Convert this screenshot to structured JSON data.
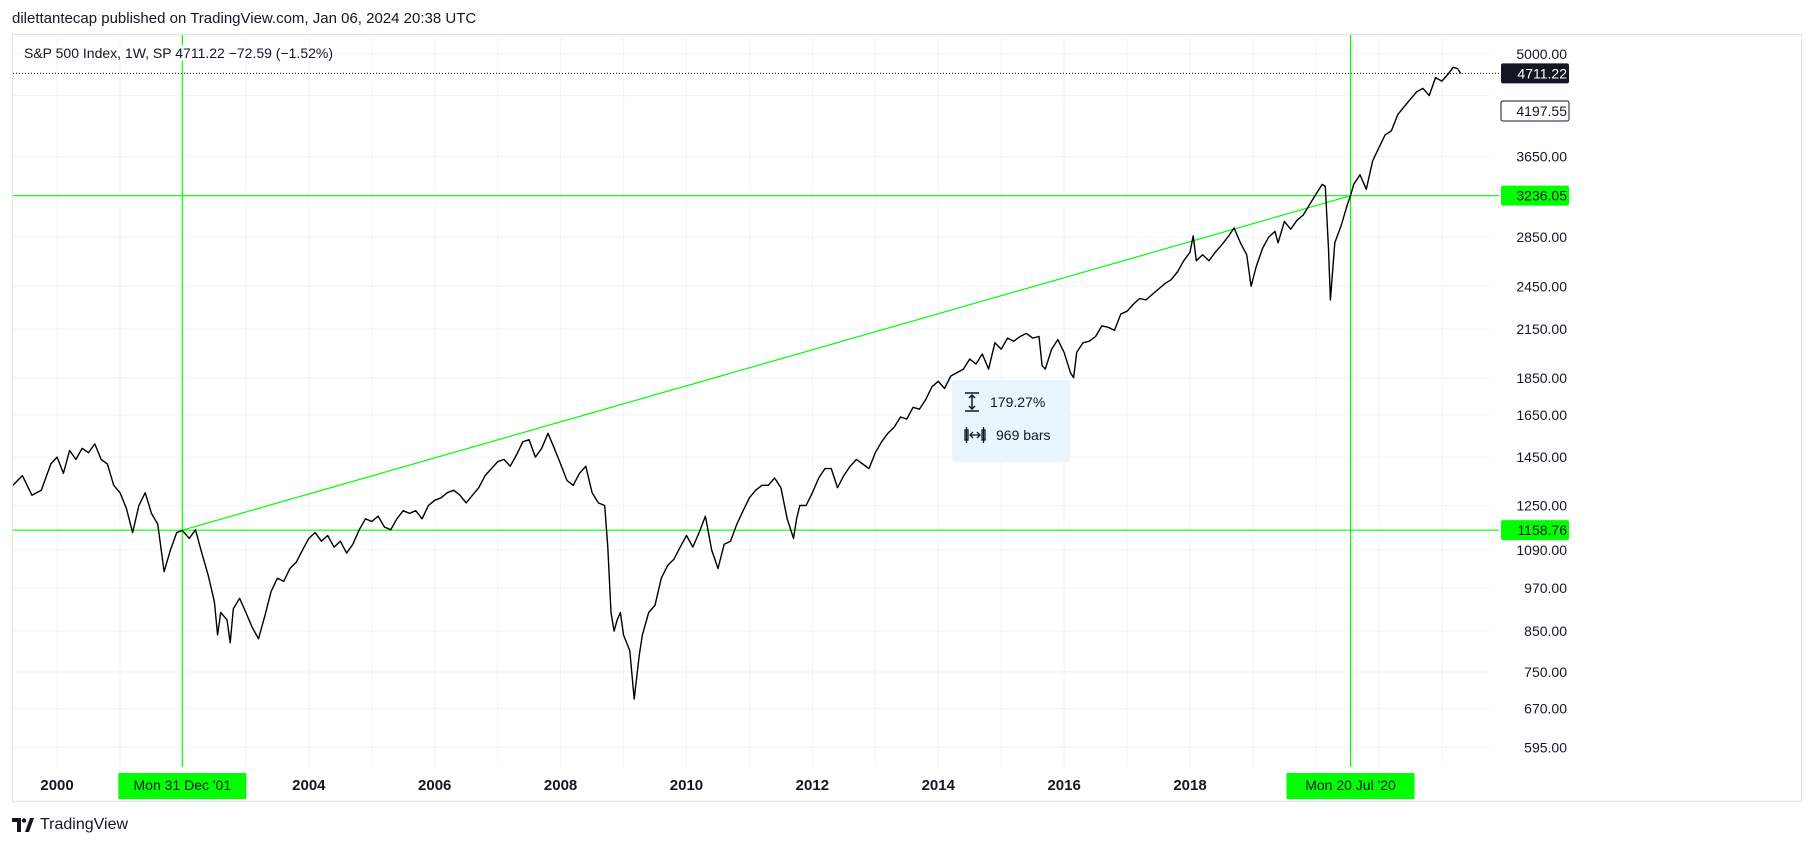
{
  "header": {
    "published": "dilettantecap published on TradingView.com, Jan 06, 2024 20:38 UTC"
  },
  "symbol_info": "S&P 500 Index, 1W, SP  4711.22  −72.59 (−1.52%)",
  "footer": {
    "brand": "TradingView",
    "logo_icon": "tradingview-logo-icon"
  },
  "colors": {
    "price_line": "#000000",
    "drawing": "#00ff00",
    "grid": "#f0f3fa",
    "badge_dark": "#131722"
  },
  "measure": {
    "percent": "179.27%",
    "bars": "969 bars",
    "percent_icon": "vertical-range-icon",
    "bars_icon": "horizontal-range-icon"
  },
  "chart_data": {
    "type": "line",
    "title": "S&P 500 Index, 1W, SP",
    "scale": "log",
    "ylim": [
      560,
      5300
    ],
    "xlim": [
      1999.3,
      2022.75
    ],
    "y_ticks": [
      5000,
      4197.55,
      3650,
      2850,
      2450,
      2150,
      1850,
      1650,
      1450,
      1250,
      1090,
      970,
      850,
      750,
      670,
      595
    ],
    "y_tick_labels": [
      "5000.00",
      "4197.55",
      "3650.00",
      "2850.00",
      "2450.00",
      "2150.00",
      "1850.00",
      "1650.00",
      "1450.00",
      "1250.00",
      "1090.00",
      "970.00",
      "850.00",
      "750.00",
      "670.00",
      "595.00"
    ],
    "x_ticks": [
      2000,
      2004,
      2006,
      2008,
      2010,
      2012,
      2014,
      2016,
      2018
    ],
    "x_tick_labels": [
      "2000",
      "2004",
      "2006",
      "2008",
      "2010",
      "2012",
      "2014",
      "2016",
      "2018"
    ],
    "current_price": {
      "value": 4711.22,
      "label": "4711.22"
    },
    "last_visible_label": {
      "value": 4197.55,
      "label": "4197.55"
    },
    "horizontal_levels": [
      {
        "value": 3236.05,
        "label": "3236.05"
      },
      {
        "value": 1158.76,
        "label": "1158.76"
      }
    ],
    "vertical_markers": [
      {
        "x": 2001.99,
        "label": "Mon 31 Dec '01"
      },
      {
        "x": 2020.55,
        "label": "Mon 20 Jul '20"
      }
    ],
    "trend_line": {
      "x": [
        2001.99,
        2020.55
      ],
      "y": [
        1158.76,
        3236.05
      ]
    },
    "series": [
      {
        "values": [
          [
            1999.3,
            1330
          ],
          [
            1999.45,
            1370
          ],
          [
            1999.6,
            1290
          ],
          [
            1999.75,
            1310
          ],
          [
            1999.9,
            1420
          ],
          [
            2000.0,
            1450
          ],
          [
            2000.1,
            1380
          ],
          [
            2000.2,
            1480
          ],
          [
            2000.3,
            1440
          ],
          [
            2000.4,
            1490
          ],
          [
            2000.5,
            1470
          ],
          [
            2000.6,
            1510
          ],
          [
            2000.7,
            1440
          ],
          [
            2000.8,
            1420
          ],
          [
            2000.9,
            1330
          ],
          [
            2001.0,
            1300
          ],
          [
            2001.1,
            1240
          ],
          [
            2001.2,
            1150
          ],
          [
            2001.3,
            1250
          ],
          [
            2001.4,
            1300
          ],
          [
            2001.5,
            1220
          ],
          [
            2001.6,
            1180
          ],
          [
            2001.7,
            1020
          ],
          [
            2001.8,
            1090
          ],
          [
            2001.9,
            1150
          ],
          [
            2001.99,
            1158
          ],
          [
            2002.1,
            1130
          ],
          [
            2002.2,
            1160
          ],
          [
            2002.3,
            1080
          ],
          [
            2002.4,
            1010
          ],
          [
            2002.5,
            930
          ],
          [
            2002.55,
            840
          ],
          [
            2002.6,
            900
          ],
          [
            2002.7,
            880
          ],
          [
            2002.75,
            820
          ],
          [
            2002.8,
            910
          ],
          [
            2002.9,
            940
          ],
          [
            2003.0,
            900
          ],
          [
            2003.1,
            860
          ],
          [
            2003.2,
            830
          ],
          [
            2003.3,
            890
          ],
          [
            2003.4,
            960
          ],
          [
            2003.5,
            1000
          ],
          [
            2003.6,
            990
          ],
          [
            2003.7,
            1030
          ],
          [
            2003.8,
            1050
          ],
          [
            2003.9,
            1090
          ],
          [
            2004.0,
            1130
          ],
          [
            2004.1,
            1150
          ],
          [
            2004.2,
            1120
          ],
          [
            2004.3,
            1140
          ],
          [
            2004.4,
            1100
          ],
          [
            2004.5,
            1120
          ],
          [
            2004.6,
            1080
          ],
          [
            2004.7,
            1110
          ],
          [
            2004.8,
            1160
          ],
          [
            2004.9,
            1200
          ],
          [
            2005.0,
            1190
          ],
          [
            2005.1,
            1210
          ],
          [
            2005.2,
            1170
          ],
          [
            2005.3,
            1160
          ],
          [
            2005.4,
            1200
          ],
          [
            2005.5,
            1230
          ],
          [
            2005.6,
            1220
          ],
          [
            2005.7,
            1230
          ],
          [
            2005.8,
            1200
          ],
          [
            2005.9,
            1250
          ],
          [
            2006.0,
            1270
          ],
          [
            2006.1,
            1280
          ],
          [
            2006.2,
            1300
          ],
          [
            2006.3,
            1310
          ],
          [
            2006.4,
            1290
          ],
          [
            2006.5,
            1260
          ],
          [
            2006.6,
            1290
          ],
          [
            2006.7,
            1320
          ],
          [
            2006.8,
            1370
          ],
          [
            2006.9,
            1400
          ],
          [
            2007.0,
            1430
          ],
          [
            2007.1,
            1440
          ],
          [
            2007.2,
            1410
          ],
          [
            2007.3,
            1460
          ],
          [
            2007.4,
            1520
          ],
          [
            2007.5,
            1530
          ],
          [
            2007.6,
            1450
          ],
          [
            2007.7,
            1490
          ],
          [
            2007.8,
            1560
          ],
          [
            2007.9,
            1490
          ],
          [
            2008.0,
            1420
          ],
          [
            2008.1,
            1350
          ],
          [
            2008.2,
            1330
          ],
          [
            2008.3,
            1380
          ],
          [
            2008.4,
            1410
          ],
          [
            2008.5,
            1300
          ],
          [
            2008.6,
            1260
          ],
          [
            2008.7,
            1250
          ],
          [
            2008.75,
            1100
          ],
          [
            2008.8,
            900
          ],
          [
            2008.85,
            850
          ],
          [
            2008.9,
            880
          ],
          [
            2008.95,
            900
          ],
          [
            2009.0,
            840
          ],
          [
            2009.1,
            800
          ],
          [
            2009.17,
            690
          ],
          [
            2009.25,
            790
          ],
          [
            2009.3,
            840
          ],
          [
            2009.4,
            900
          ],
          [
            2009.5,
            920
          ],
          [
            2009.6,
            1000
          ],
          [
            2009.7,
            1040
          ],
          [
            2009.8,
            1060
          ],
          [
            2009.9,
            1100
          ],
          [
            2010.0,
            1140
          ],
          [
            2010.1,
            1100
          ],
          [
            2010.2,
            1150
          ],
          [
            2010.3,
            1210
          ],
          [
            2010.4,
            1090
          ],
          [
            2010.5,
            1030
          ],
          [
            2010.6,
            1110
          ],
          [
            2010.7,
            1120
          ],
          [
            2010.8,
            1180
          ],
          [
            2010.9,
            1230
          ],
          [
            2011.0,
            1280
          ],
          [
            2011.1,
            1310
          ],
          [
            2011.2,
            1330
          ],
          [
            2011.3,
            1330
          ],
          [
            2011.4,
            1360
          ],
          [
            2011.5,
            1320
          ],
          [
            2011.6,
            1200
          ],
          [
            2011.7,
            1130
          ],
          [
            2011.75,
            1200
          ],
          [
            2011.8,
            1250
          ],
          [
            2011.9,
            1250
          ],
          [
            2012.0,
            1300
          ],
          [
            2012.1,
            1360
          ],
          [
            2012.2,
            1400
          ],
          [
            2012.3,
            1400
          ],
          [
            2012.4,
            1320
          ],
          [
            2012.5,
            1370
          ],
          [
            2012.6,
            1410
          ],
          [
            2012.7,
            1440
          ],
          [
            2012.8,
            1420
          ],
          [
            2012.9,
            1400
          ],
          [
            2013.0,
            1470
          ],
          [
            2013.1,
            1520
          ],
          [
            2013.2,
            1560
          ],
          [
            2013.3,
            1590
          ],
          [
            2013.4,
            1640
          ],
          [
            2013.5,
            1630
          ],
          [
            2013.6,
            1690
          ],
          [
            2013.7,
            1680
          ],
          [
            2013.8,
            1730
          ],
          [
            2013.9,
            1800
          ],
          [
            2014.0,
            1830
          ],
          [
            2014.1,
            1790
          ],
          [
            2014.2,
            1860
          ],
          [
            2014.3,
            1880
          ],
          [
            2014.4,
            1900
          ],
          [
            2014.5,
            1960
          ],
          [
            2014.6,
            1930
          ],
          [
            2014.7,
            1990
          ],
          [
            2014.8,
            1900
          ],
          [
            2014.9,
            2060
          ],
          [
            2015.0,
            2020
          ],
          [
            2015.1,
            2090
          ],
          [
            2015.2,
            2070
          ],
          [
            2015.3,
            2100
          ],
          [
            2015.4,
            2120
          ],
          [
            2015.5,
            2090
          ],
          [
            2015.6,
            2100
          ],
          [
            2015.65,
            1920
          ],
          [
            2015.7,
            1900
          ],
          [
            2015.8,
            2020
          ],
          [
            2015.9,
            2080
          ],
          [
            2016.0,
            2000
          ],
          [
            2016.1,
            1880
          ],
          [
            2016.15,
            1850
          ],
          [
            2016.2,
            2000
          ],
          [
            2016.3,
            2060
          ],
          [
            2016.4,
            2070
          ],
          [
            2016.5,
            2100
          ],
          [
            2016.6,
            2170
          ],
          [
            2016.7,
            2160
          ],
          [
            2016.8,
            2140
          ],
          [
            2016.9,
            2250
          ],
          [
            2017.0,
            2270
          ],
          [
            2017.1,
            2320
          ],
          [
            2017.2,
            2360
          ],
          [
            2017.3,
            2350
          ],
          [
            2017.4,
            2390
          ],
          [
            2017.5,
            2430
          ],
          [
            2017.6,
            2470
          ],
          [
            2017.7,
            2500
          ],
          [
            2017.8,
            2560
          ],
          [
            2017.9,
            2650
          ],
          [
            2018.0,
            2720
          ],
          [
            2018.05,
            2860
          ],
          [
            2018.1,
            2650
          ],
          [
            2018.2,
            2700
          ],
          [
            2018.3,
            2650
          ],
          [
            2018.4,
            2720
          ],
          [
            2018.5,
            2780
          ],
          [
            2018.6,
            2850
          ],
          [
            2018.7,
            2930
          ],
          [
            2018.8,
            2800
          ],
          [
            2018.9,
            2700
          ],
          [
            2018.97,
            2450
          ],
          [
            2019.05,
            2600
          ],
          [
            2019.15,
            2750
          ],
          [
            2019.25,
            2850
          ],
          [
            2019.35,
            2900
          ],
          [
            2019.4,
            2800
          ],
          [
            2019.5,
            2990
          ],
          [
            2019.6,
            2920
          ],
          [
            2019.7,
            3000
          ],
          [
            2019.8,
            3050
          ],
          [
            2019.9,
            3150
          ],
          [
            2020.0,
            3250
          ],
          [
            2020.1,
            3350
          ],
          [
            2020.15,
            3330
          ],
          [
            2020.2,
            2750
          ],
          [
            2020.23,
            2350
          ],
          [
            2020.3,
            2800
          ],
          [
            2020.4,
            2950
          ],
          [
            2020.5,
            3150
          ],
          [
            2020.55,
            3236
          ],
          [
            2020.6,
            3350
          ],
          [
            2020.7,
            3450
          ],
          [
            2020.8,
            3300
          ],
          [
            2020.9,
            3600
          ],
          [
            2021.0,
            3750
          ],
          [
            2021.1,
            3900
          ],
          [
            2021.2,
            3950
          ],
          [
            2021.3,
            4150
          ],
          [
            2021.4,
            4250
          ],
          [
            2021.5,
            4350
          ],
          [
            2021.6,
            4450
          ],
          [
            2021.7,
            4500
          ],
          [
            2021.8,
            4400
          ],
          [
            2021.9,
            4650
          ],
          [
            2022.0,
            4600
          ],
          [
            2022.1,
            4700
          ],
          [
            2022.18,
            4800
          ],
          [
            2022.25,
            4780
          ],
          [
            2022.3,
            4711
          ]
        ]
      }
    ]
  }
}
